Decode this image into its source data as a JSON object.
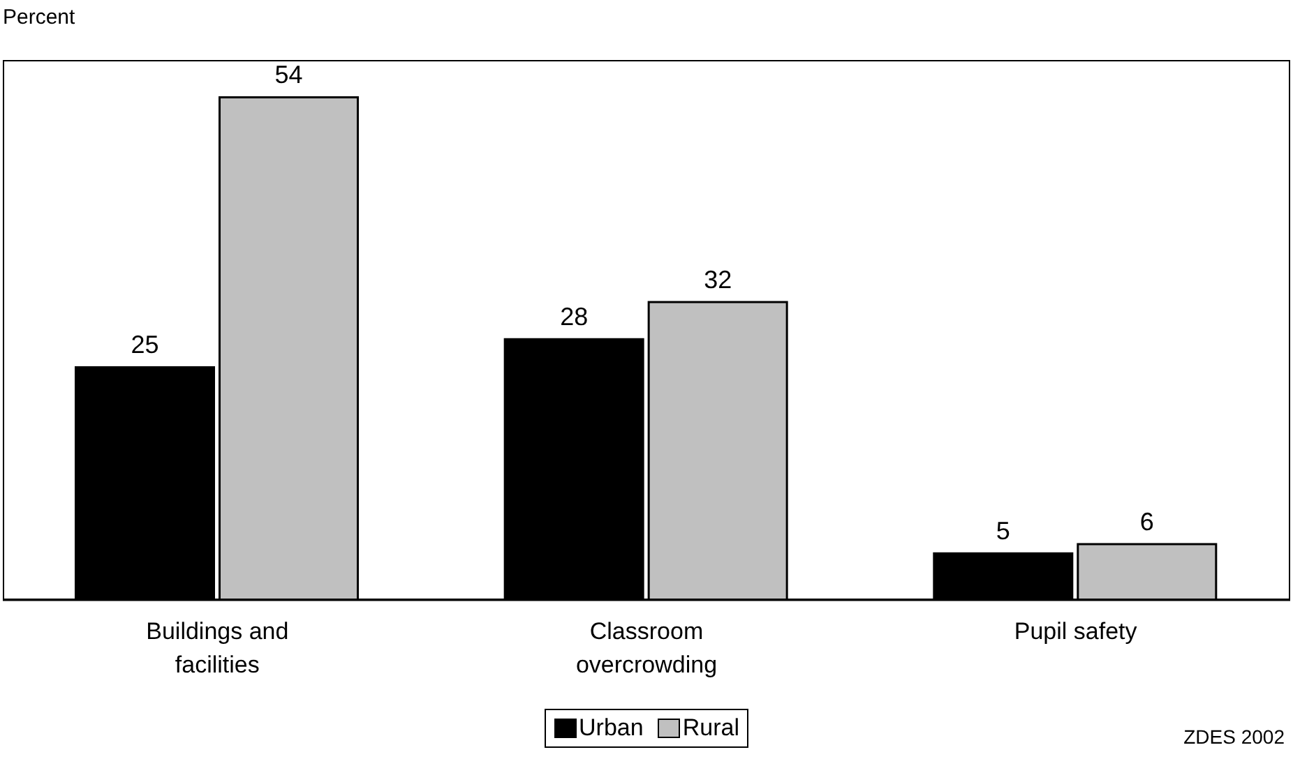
{
  "chart_data": {
    "type": "bar",
    "ylabel": "Percent",
    "categories": [
      "Buildings and facilities",
      "Classroom overcrowding",
      "Pupil safety"
    ],
    "series": [
      {
        "name": "Urban",
        "color": "#000000",
        "values": [
          25,
          28,
          5
        ]
      },
      {
        "name": "Rural",
        "color": "#c0c0c0",
        "values": [
          54,
          32,
          6
        ]
      }
    ],
    "ylim": [
      0,
      58
    ],
    "tick_labels": "x",
    "data_labels": true,
    "grid": false,
    "legend": "bottom",
    "annotations": [
      "ZDES 2002"
    ]
  }
}
